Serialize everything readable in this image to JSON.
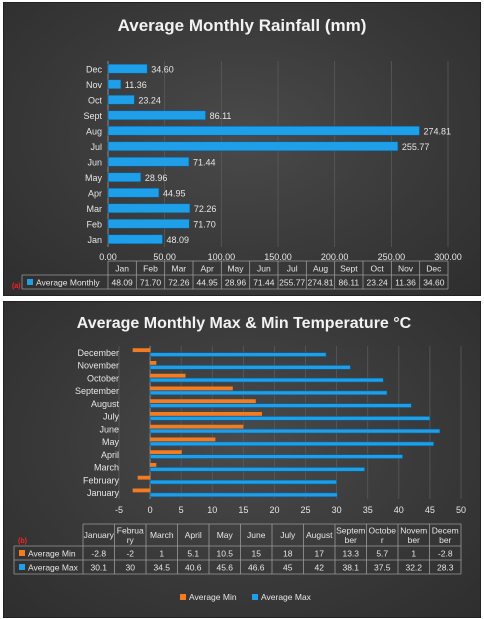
{
  "chart_data": [
    {
      "type": "bar",
      "orientation": "horizontal",
      "title": "Average Monthly Rainfall (mm)",
      "categories": [
        "Jan",
        "Feb",
        "Mar",
        "Apr",
        "May",
        "Jun",
        "Jul",
        "Aug",
        "Sept",
        "Oct",
        "Nov",
        "Dec"
      ],
      "series": [
        {
          "name": "Average Monthly",
          "color": "#1f9fe8",
          "values": [
            48.09,
            71.7,
            72.26,
            44.95,
            28.96,
            71.44,
            255.77,
            274.81,
            86.11,
            23.24,
            11.36,
            34.6
          ],
          "labels": [
            "48.09",
            "71.70",
            "72.26",
            "44.95",
            "28.96",
            "71.44",
            "255.77",
            "274.81",
            "86.11",
            "23.24",
            "11.36",
            "34.60"
          ]
        }
      ],
      "xlim": [
        0,
        300
      ],
      "xticks": [
        "0.00",
        "50.00",
        "100.00",
        "150.00",
        "200.00",
        "250.00",
        "300.00"
      ],
      "table_header": [
        "Jan",
        "Feb",
        "Mar",
        "Apr",
        "May",
        "Jun",
        "Jul",
        "Aug",
        "Sept",
        "Oct",
        "Nov",
        "Dec"
      ],
      "table_rows": [
        {
          "name": "Average Monthly",
          "color": "#1f9fe8",
          "cells": [
            "48.09",
            "71.70",
            "72.26",
            "44.95",
            "28.96",
            "71.44",
            "255.77",
            "274.81",
            "86.11",
            "23.24",
            "11.36",
            "34.60"
          ]
        }
      ],
      "marker": "(a)"
    },
    {
      "type": "bar",
      "orientation": "horizontal",
      "title": "Average Monthly Max & Min Temperature °C",
      "categories": [
        "January",
        "February",
        "March",
        "April",
        "May",
        "June",
        "July",
        "August",
        "September",
        "October",
        "November",
        "December"
      ],
      "series": [
        {
          "name": "Average Min",
          "color": "#f47c20",
          "values": [
            -2.8,
            -2,
            1,
            5.1,
            10.5,
            15,
            18,
            17,
            13.3,
            5.7,
            1,
            -2.8
          ]
        },
        {
          "name": "Average Max",
          "color": "#1f9fe8",
          "values": [
            30.1,
            30,
            34.5,
            40.6,
            45.6,
            46.6,
            45,
            42,
            38.1,
            37.5,
            32.2,
            28.3
          ]
        }
      ],
      "xlim": [
        -5,
        50
      ],
      "xticks": [
        "-5",
        "0",
        "5",
        "10",
        "15",
        "20",
        "25",
        "30",
        "35",
        "40",
        "45",
        "50"
      ],
      "table_header": [
        [
          "January"
        ],
        [
          "Februa",
          "ry"
        ],
        [
          "March"
        ],
        [
          "April"
        ],
        [
          "May"
        ],
        [
          "June"
        ],
        [
          "July"
        ],
        [
          "August"
        ],
        [
          "Septem",
          "ber"
        ],
        [
          "Octobe",
          "r"
        ],
        [
          "Novem",
          "ber"
        ],
        [
          "Decem",
          "ber"
        ]
      ],
      "table_rows": [
        {
          "name": "Average Min",
          "color": "#f47c20",
          "cells": [
            "-2.8",
            "-2",
            "1",
            "5.1",
            "10.5",
            "15",
            "18",
            "17",
            "13.3",
            "5.7",
            "1",
            "-2.8"
          ]
        },
        {
          "name": "Average Max",
          "color": "#1f9fe8",
          "cells": [
            "30.1",
            "30",
            "34.5",
            "40.6",
            "45.6",
            "46.6",
            "45",
            "42",
            "38.1",
            "37.5",
            "32.2",
            "28.3"
          ]
        }
      ],
      "legend": [
        "Average Min",
        "Average Max"
      ],
      "legend_position": "bottom",
      "marker": "(b)"
    }
  ]
}
